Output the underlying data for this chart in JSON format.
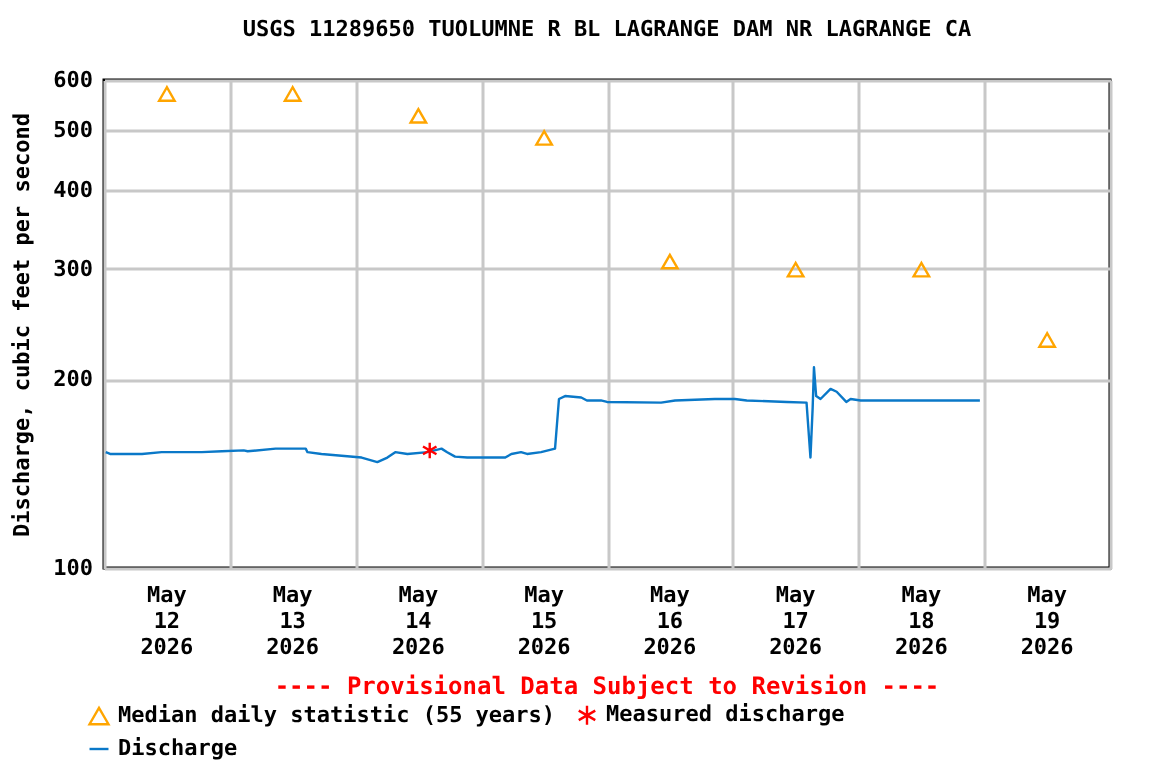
{
  "chart_data": {
    "type": "line",
    "title": "USGS 11289650 TUOLUMNE R BL LAGRANGE DAM NR LAGRANGE CA",
    "ylabel": "Discharge, cubic feet per second",
    "annotations": [
      "---- Provisional Data Subject to Revision ----"
    ],
    "log": "y",
    "grid": true,
    "legend": "bottom",
    "xlim": [
      "2026-05-12T00:00",
      "2026-05-20T00:00"
    ],
    "xticks": [
      {
        "value": "2026-05-12T00:00",
        "label": null
      },
      {
        "value": "2026-05-12T12:00",
        "label": "May 12 2026"
      },
      {
        "value": "2026-05-13T00:00",
        "label": null
      },
      {
        "value": "2026-05-13T12:00",
        "label": "May 13 2026"
      },
      {
        "value": "2026-05-14T00:00",
        "label": null
      },
      {
        "value": "2026-05-14T12:00",
        "label": "May 14 2026"
      },
      {
        "value": "2026-05-15T00:00",
        "label": null
      },
      {
        "value": "2026-05-15T12:00",
        "label": "May 15 2026"
      },
      {
        "value": "2026-05-16T00:00",
        "label": null
      },
      {
        "value": "2026-05-16T12:00",
        "label": "May 16 2026"
      },
      {
        "value": "2026-05-17T00:00",
        "label": null
      },
      {
        "value": "2026-05-17T12:00",
        "label": "May 17 2026"
      },
      {
        "value": "2026-05-18T00:00",
        "label": null
      },
      {
        "value": "2026-05-18T12:00",
        "label": "May 18 2026"
      },
      {
        "value": "2026-05-19T00:00",
        "label": null
      },
      {
        "value": "2026-05-19T12:00",
        "label": "May 19 2026"
      },
      {
        "value": "2026-05-20T00:00",
        "label": null
      }
    ],
    "ylim": [
      100,
      600
    ],
    "yticks": [
      100,
      200,
      300,
      400,
      500,
      600
    ],
    "series": [
      {
        "name": "Median daily statistic (55 years)",
        "type": "scatter",
        "marker": "triangle",
        "color": "#ffa500",
        "x": [
          "2026-05-12T12:00",
          "2026-05-13T12:00",
          "2026-05-14T12:00",
          "2026-05-15T12:00",
          "2026-05-16T12:00",
          "2026-05-17T12:00",
          "2026-05-18T12:00",
          "2026-05-19T12:00"
        ],
        "values": [
          570,
          570,
          526,
          485,
          308,
          299,
          299,
          231
        ]
      },
      {
        "name": "Measured discharge",
        "type": "scatter",
        "marker": "cross",
        "color": "#ff0000",
        "x": [
          "2026-05-14T14:10"
        ],
        "values": [
          154
        ]
      },
      {
        "name": "Discharge",
        "type": "line",
        "color": "#0a78c8",
        "x": [
          "2026-05-12T00:20",
          "2026-05-12T01:10",
          "2026-05-12T07:15",
          "2026-05-12T11:00",
          "2026-05-12T18:40",
          "2026-05-12T22:30",
          "2026-05-13T02:40",
          "2026-05-13T03:25",
          "2026-05-13T08:45",
          "2026-05-13T14:30",
          "2026-05-13T14:50",
          "2026-05-13T17:30",
          "2026-05-13T21:20",
          "2026-05-14T01:10",
          "2026-05-14T04:10",
          "2026-05-14T06:05",
          "2026-05-14T07:35",
          "2026-05-14T09:55",
          "2026-05-14T13:45",
          "2026-05-14T16:25",
          "2026-05-14T17:30",
          "2026-05-14T19:00",
          "2026-05-14T21:20",
          "2026-05-15T04:35",
          "2026-05-15T05:45",
          "2026-05-15T07:35",
          "2026-05-15T08:45",
          "2026-05-15T11:25",
          "2026-05-15T14:05",
          "2026-05-15T14:50",
          "2026-05-15T16:00",
          "2026-05-15T19:05",
          "2026-05-15T20:10",
          "2026-05-15T22:50",
          "2026-05-16T00:00",
          "2026-05-16T10:20",
          "2026-05-16T13:00",
          "2026-05-16T20:35",
          "2026-05-17T00:25",
          "2026-05-17T02:40",
          "2026-05-17T10:20",
          "2026-05-17T14:05",
          "2026-05-17T14:50",
          "2026-05-17T15:15",
          "2026-05-17T15:30",
          "2026-05-17T15:55",
          "2026-05-17T16:45",
          "2026-05-17T18:40",
          "2026-05-17T19:50",
          "2026-05-17T21:40",
          "2026-05-17T22:30",
          "2026-05-18T00:25",
          "2026-05-18T23:10"
        ],
        "values": [
          153,
          152,
          152,
          153,
          153,
          153.5,
          154,
          153.5,
          155,
          155,
          153,
          152,
          151,
          150,
          147.5,
          150,
          153,
          152,
          153,
          155,
          153,
          150.5,
          150,
          150,
          152,
          153,
          152,
          153,
          155,
          186,
          188,
          187,
          185,
          185,
          184,
          183.5,
          185,
          186,
          186,
          185,
          184,
          183.5,
          150,
          180,
          209,
          188,
          186,
          193,
          191,
          184,
          186,
          185,
          185
        ]
      }
    ]
  }
}
